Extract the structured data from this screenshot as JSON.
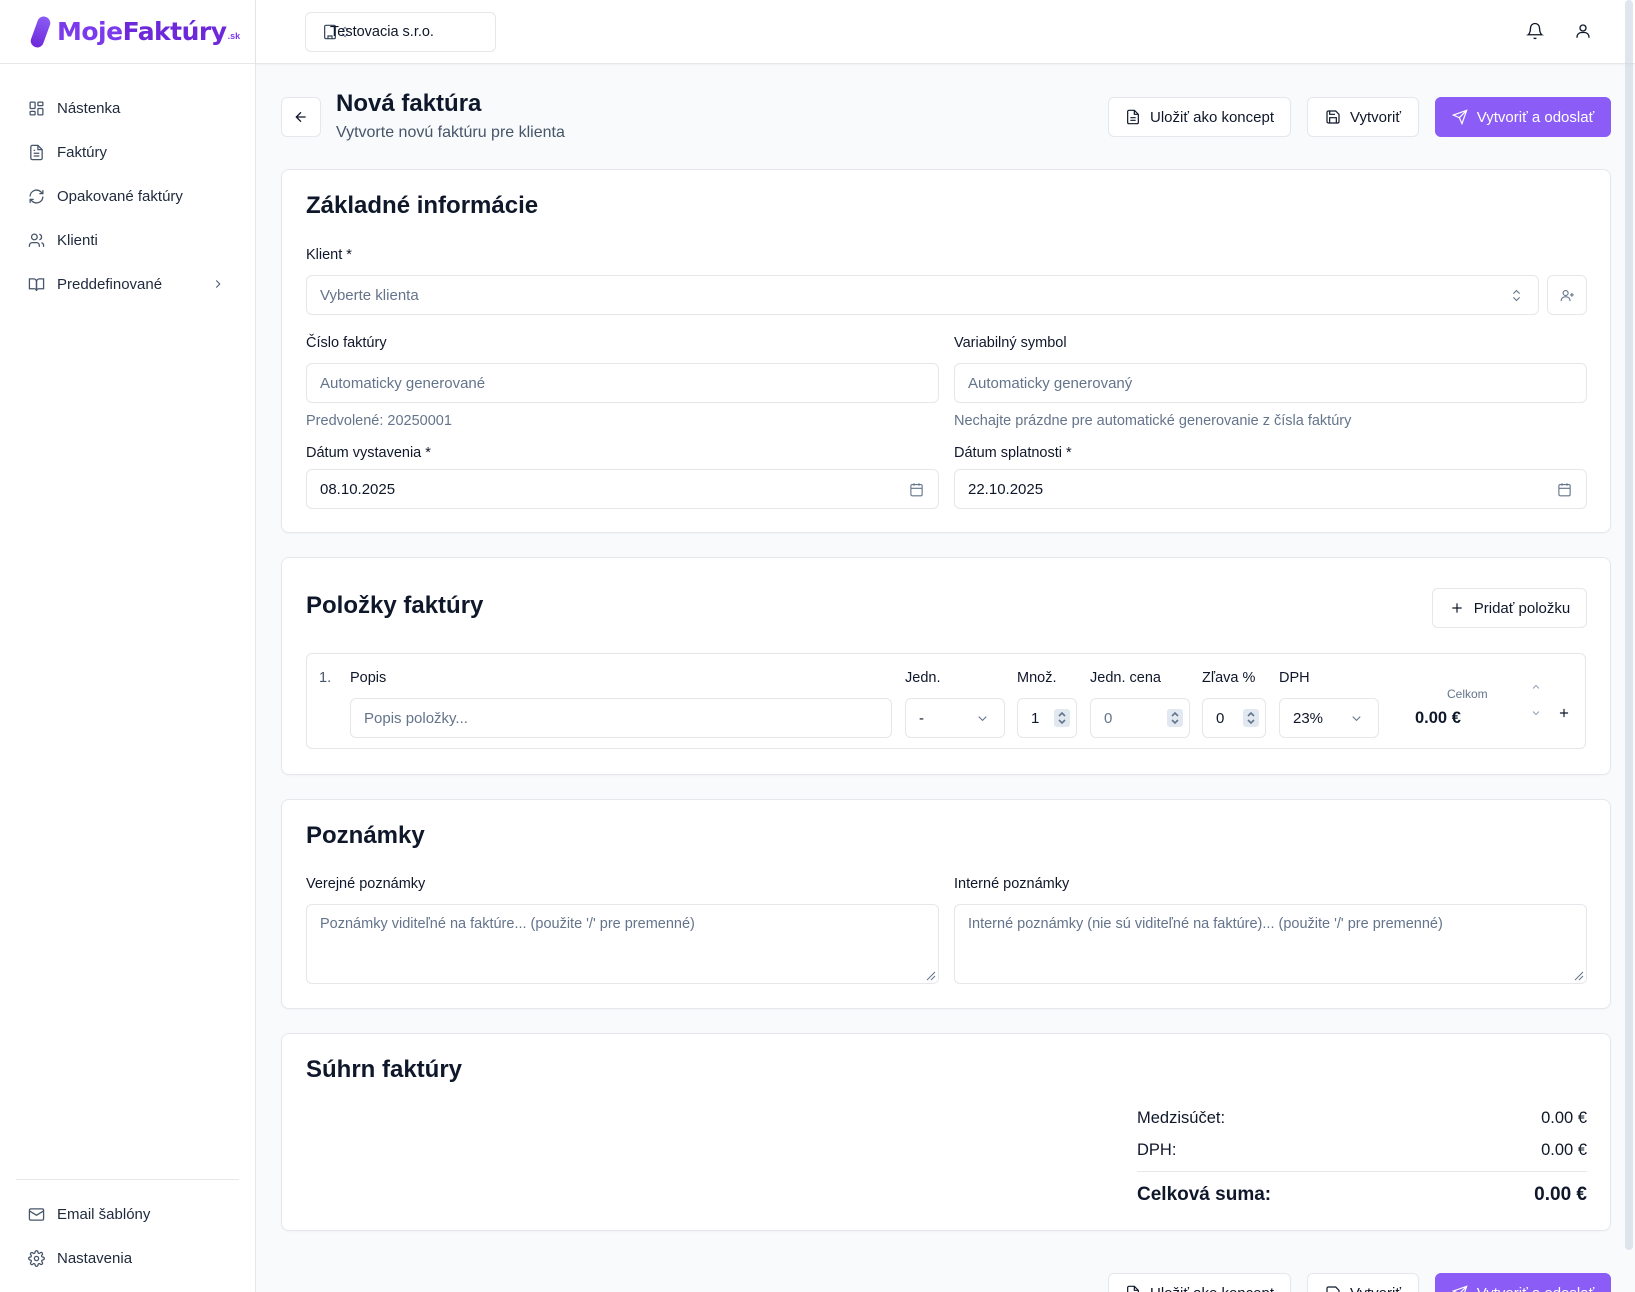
{
  "brand": {
    "part1": "Moje",
    "part2": "Faktúry",
    "tld": ".sk"
  },
  "sidebar": {
    "items": [
      {
        "label": "Nástenka",
        "icon": "dashboard-icon"
      },
      {
        "label": "Faktúry",
        "icon": "document-icon"
      },
      {
        "label": "Opakované faktúry",
        "icon": "refresh-icon"
      },
      {
        "label": "Klienti",
        "icon": "users-icon"
      },
      {
        "label": "Preddefinované",
        "icon": "book-icon"
      }
    ],
    "bottom_items": [
      {
        "label": "Email šablóny",
        "icon": "mail-icon"
      },
      {
        "label": "Nastavenia",
        "icon": "gear-icon"
      }
    ]
  },
  "topbar": {
    "company": "Testovacia s.r.o."
  },
  "header": {
    "title": "Nová faktúra",
    "subtitle": "Vytvorte novú faktúru pre klienta",
    "save_draft": "Uložiť ako koncept",
    "create": "Vytvoriť",
    "create_send": "Vytvoriť a odoslať"
  },
  "basic": {
    "title": "Základné informácie",
    "client_label": "Klient *",
    "client_placeholder": "Vyberte klienta",
    "invoice_number_label": "Číslo faktúry",
    "invoice_number_placeholder": "Automaticky generované",
    "invoice_number_hint": "Predvolené: 20250001",
    "vs_label": "Variabilný symbol",
    "vs_placeholder": "Automaticky generovaný",
    "vs_hint": "Nechajte prázdne pre automatické generovanie z čísla faktúry",
    "issue_date_label": "Dátum vystavenia *",
    "issue_date": "08.10.2025",
    "due_date_label": "Dátum splatnosti *",
    "due_date": "22.10.2025"
  },
  "items": {
    "title": "Položky faktúry",
    "add_button": "Pridať položku",
    "headers": {
      "description": "Popis",
      "unit": "Jedn.",
      "qty": "Množ.",
      "unit_price": "Jedn. cena",
      "discount": "Zľava %",
      "vat": "DPH",
      "total": "Celkom"
    },
    "rows": [
      {
        "index": "1.",
        "description_placeholder": "Popis položky...",
        "unit": "-",
        "qty": "1",
        "unit_price_placeholder": "0",
        "discount": "0",
        "vat": "23%",
        "total": "0.00 €"
      }
    ]
  },
  "notes": {
    "title": "Poznámky",
    "public_label": "Verejné poznámky",
    "public_placeholder": "Poznámky viditeľné na faktúre... (použite '/' pre premenné)",
    "internal_label": "Interné poznámky",
    "internal_placeholder": "Interné poznámky (nie sú viditeľné na faktúre)... (použite '/' pre premenné)"
  },
  "summary": {
    "title": "Súhrn faktúry",
    "subtotal_label": "Medzisúčet:",
    "subtotal": "0.00 €",
    "vat_label": "DPH:",
    "vat": "0.00 €",
    "total_label": "Celková suma:",
    "total": "0.00 €"
  },
  "colors": {
    "accent": "#8b5cf6",
    "border": "#e5e7eb",
    "muted_text": "#64748b"
  }
}
